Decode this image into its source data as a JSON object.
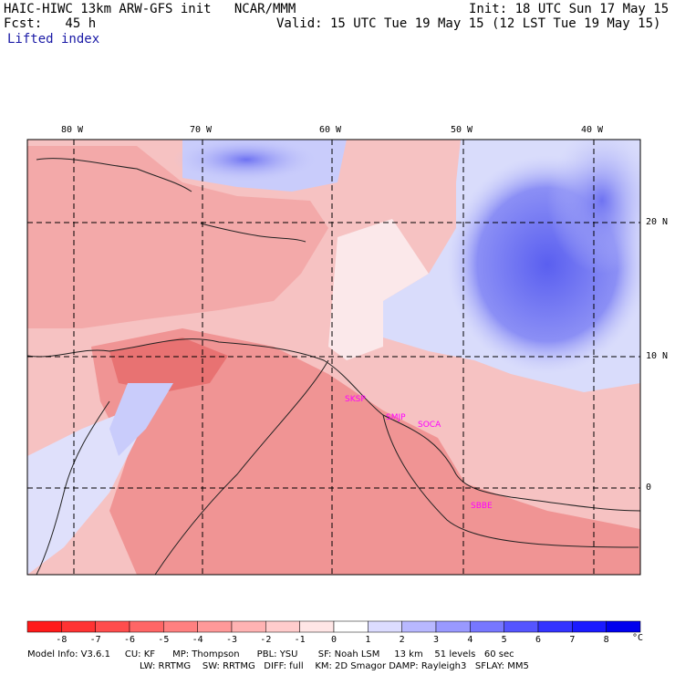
{
  "header": {
    "model_title": "HAIC-HIWC 13km ARW-GFS init   NCAR/MMM",
    "forecast": "Fcst:   45 h",
    "field": "Lifted index",
    "init": "Init: 18 UTC Sun 17 May 15",
    "valid": "Valid: 15 UTC Tue 19 May 15 (12 LST Tue 19 May 15)"
  },
  "map": {
    "lon_labels": [
      "80 W",
      "70 W",
      "60 W",
      "50 W",
      "40 W"
    ],
    "lat_labels": [
      "20 N",
      "10 N",
      "0"
    ],
    "station_labels": [
      "SKSP",
      "SMJP",
      "SOCA",
      "SBBE"
    ],
    "station_color": "#ff00ff",
    "grid": "dashed",
    "warm_color": "#f08080",
    "cool_color": "#4444ee"
  },
  "colorbar": {
    "labels": [
      "-8",
      "-7",
      "-6",
      "-5",
      "-4",
      "-3",
      "-2",
      "-1",
      "0",
      "1",
      "2",
      "3",
      "4",
      "5",
      "6",
      "7",
      "8"
    ],
    "unit": "°C",
    "colors": [
      "#ff1a1a",
      "#ff3333",
      "#ff4d4d",
      "#ff6666",
      "#ff8080",
      "#ff9999",
      "#ffb3b3",
      "#ffcccc",
      "#ffe6e6",
      "#ffffff",
      "#dcdcff",
      "#b8b8ff",
      "#9999ff",
      "#7777ff",
      "#5555ff",
      "#3333ff",
      "#1a1aff",
      "#0000ee"
    ]
  },
  "footer": {
    "line1": "Model Info: V3.6.1     CU: KF      MP: Thompson      PBL: YSU       SF: Noah LSM     13 km    51 levels   60 sec",
    "line2": "LW: RRTMG    SW: RRTMG   DIFF: full    KM: 2D Smagor DAMP: Rayleigh3   SFLAY: MM5"
  }
}
